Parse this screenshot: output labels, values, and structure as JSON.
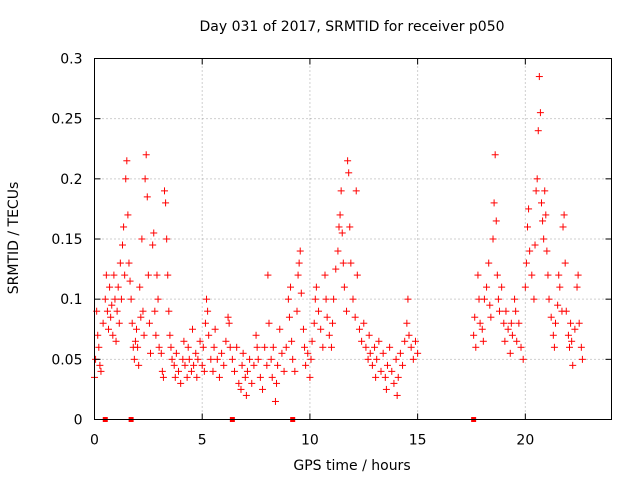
{
  "chart_data": {
    "type": "scatter",
    "title": "Day 031 of 2017, SRMTID for receiver p050",
    "xlabel": "GPS time / hours",
    "ylabel": "SRMTID / TECUs",
    "xlim": [
      0,
      24
    ],
    "ylim": [
      0,
      0.3
    ],
    "xticks": [
      0,
      5,
      10,
      15,
      20
    ],
    "xtick_labels": [
      "0",
      "5",
      "10",
      "15",
      "20"
    ],
    "yticks": [
      0,
      0.05,
      0.1,
      0.15,
      0.2,
      0.25,
      0.3
    ],
    "ytick_labels": [
      "0",
      "0.05",
      "0.1",
      "0.15",
      "0.2",
      "0.25",
      "0.3"
    ],
    "grid": true,
    "marker": "+",
    "color": "#ff0000",
    "series": [
      {
        "name": "SRMTID",
        "points": [
          [
            0.0,
            0.035
          ],
          [
            0.05,
            0.05
          ],
          [
            0.1,
            0.09
          ],
          [
            0.15,
            0.07
          ],
          [
            0.2,
            0.06
          ],
          [
            0.25,
            0.045
          ],
          [
            0.3,
            0.04
          ],
          [
            0.4,
            0.08
          ],
          [
            0.5,
            0.1
          ],
          [
            0.55,
            0.12
          ],
          [
            0.6,
            0.09
          ],
          [
            0.65,
            0.075
          ],
          [
            0.7,
            0.11
          ],
          [
            0.75,
            0.085
          ],
          [
            0.8,
            0.095
          ],
          [
            0.85,
            0.07
          ],
          [
            0.9,
            0.12
          ],
          [
            0.95,
            0.1
          ],
          [
            1.0,
            0.065
          ],
          [
            1.05,
            0.09
          ],
          [
            1.1,
            0.11
          ],
          [
            1.15,
            0.08
          ],
          [
            1.2,
            0.13
          ],
          [
            1.25,
            0.1
          ],
          [
            1.3,
            0.145
          ],
          [
            1.35,
            0.16
          ],
          [
            1.4,
            0.12
          ],
          [
            1.45,
            0.2
          ],
          [
            1.5,
            0.215
          ],
          [
            1.55,
            0.17
          ],
          [
            1.6,
            0.13
          ],
          [
            1.65,
            0.115
          ],
          [
            1.7,
            0.1
          ],
          [
            1.75,
            0.08
          ],
          [
            1.8,
            0.06
          ],
          [
            1.85,
            0.05
          ],
          [
            1.9,
            0.065
          ],
          [
            1.95,
            0.075
          ],
          [
            2.0,
            0.06
          ],
          [
            2.05,
            0.045
          ],
          [
            2.1,
            0.11
          ],
          [
            2.15,
            0.085
          ],
          [
            2.2,
            0.15
          ],
          [
            2.25,
            0.09
          ],
          [
            2.3,
            0.07
          ],
          [
            2.35,
            0.2
          ],
          [
            2.4,
            0.22
          ],
          [
            2.45,
            0.185
          ],
          [
            2.5,
            0.12
          ],
          [
            2.55,
            0.08
          ],
          [
            2.6,
            0.055
          ],
          [
            2.7,
            0.145
          ],
          [
            2.75,
            0.155
          ],
          [
            2.8,
            0.09
          ],
          [
            2.85,
            0.07
          ],
          [
            2.9,
            0.12
          ],
          [
            2.95,
            0.1
          ],
          [
            3.0,
            0.06
          ],
          [
            3.1,
            0.055
          ],
          [
            3.15,
            0.04
          ],
          [
            3.2,
            0.035
          ],
          [
            3.25,
            0.19
          ],
          [
            3.3,
            0.18
          ],
          [
            3.35,
            0.15
          ],
          [
            3.4,
            0.12
          ],
          [
            3.45,
            0.09
          ],
          [
            3.5,
            0.07
          ],
          [
            3.55,
            0.06
          ],
          [
            3.6,
            0.05
          ],
          [
            3.7,
            0.045
          ],
          [
            3.75,
            0.035
          ],
          [
            3.8,
            0.055
          ],
          [
            3.9,
            0.04
          ],
          [
            4.0,
            0.03
          ],
          [
            4.1,
            0.05
          ],
          [
            4.15,
            0.065
          ],
          [
            4.2,
            0.045
          ],
          [
            4.3,
            0.035
          ],
          [
            4.35,
            0.06
          ],
          [
            4.4,
            0.05
          ],
          [
            4.5,
            0.04
          ],
          [
            4.55,
            0.075
          ],
          [
            4.6,
            0.045
          ],
          [
            4.7,
            0.055
          ],
          [
            4.75,
            0.035
          ],
          [
            4.8,
            0.05
          ],
          [
            4.9,
            0.065
          ],
          [
            5.0,
            0.045
          ],
          [
            5.05,
            0.06
          ],
          [
            5.1,
            0.04
          ],
          [
            5.15,
            0.08
          ],
          [
            5.2,
            0.1
          ],
          [
            5.25,
            0.09
          ],
          [
            5.3,
            0.07
          ],
          [
            5.4,
            0.05
          ],
          [
            5.5,
            0.04
          ],
          [
            5.55,
            0.06
          ],
          [
            5.6,
            0.075
          ],
          [
            5.7,
            0.05
          ],
          [
            5.8,
            0.035
          ],
          [
            5.9,
            0.055
          ],
          [
            6.0,
            0.045
          ],
          [
            6.1,
            0.065
          ],
          [
            6.2,
            0.085
          ],
          [
            6.25,
            0.08
          ],
          [
            6.3,
            0.06
          ],
          [
            6.4,
            0.05
          ],
          [
            6.5,
            0.04
          ],
          [
            6.6,
            0.06
          ],
          [
            6.7,
            0.03
          ],
          [
            6.8,
            0.025
          ],
          [
            6.85,
            0.045
          ],
          [
            6.9,
            0.055
          ],
          [
            7.0,
            0.035
          ],
          [
            7.05,
            0.02
          ],
          [
            7.1,
            0.04
          ],
          [
            7.2,
            0.05
          ],
          [
            7.3,
            0.03
          ],
          [
            7.4,
            0.045
          ],
          [
            7.5,
            0.07
          ],
          [
            7.55,
            0.06
          ],
          [
            7.6,
            0.05
          ],
          [
            7.7,
            0.035
          ],
          [
            7.8,
            0.025
          ],
          [
            7.9,
            0.06
          ],
          [
            8.0,
            0.045
          ],
          [
            8.05,
            0.12
          ],
          [
            8.1,
            0.08
          ],
          [
            8.2,
            0.05
          ],
          [
            8.25,
            0.035
          ],
          [
            8.3,
            0.06
          ],
          [
            8.4,
            0.015
          ],
          [
            8.45,
            0.03
          ],
          [
            8.5,
            0.045
          ],
          [
            8.6,
            0.075
          ],
          [
            8.7,
            0.055
          ],
          [
            8.8,
            0.04
          ],
          [
            8.9,
            0.06
          ],
          [
            9.0,
            0.1
          ],
          [
            9.05,
            0.085
          ],
          [
            9.1,
            0.11
          ],
          [
            9.15,
            0.065
          ],
          [
            9.2,
            0.05
          ],
          [
            9.3,
            0.04
          ],
          [
            9.4,
            0.09
          ],
          [
            9.45,
            0.12
          ],
          [
            9.5,
            0.13
          ],
          [
            9.55,
            0.14
          ],
          [
            9.6,
            0.105
          ],
          [
            9.7,
            0.075
          ],
          [
            9.75,
            0.06
          ],
          [
            9.8,
            0.045
          ],
          [
            9.9,
            0.055
          ],
          [
            10.0,
            0.035
          ],
          [
            10.05,
            0.05
          ],
          [
            10.1,
            0.065
          ],
          [
            10.2,
            0.08
          ],
          [
            10.25,
            0.1
          ],
          [
            10.3,
            0.11
          ],
          [
            10.4,
            0.09
          ],
          [
            10.5,
            0.075
          ],
          [
            10.6,
            0.06
          ],
          [
            10.7,
            0.12
          ],
          [
            10.75,
            0.1
          ],
          [
            10.8,
            0.085
          ],
          [
            10.9,
            0.07
          ],
          [
            11.0,
            0.06
          ],
          [
            11.05,
            0.08
          ],
          [
            11.1,
            0.1
          ],
          [
            11.2,
            0.125
          ],
          [
            11.3,
            0.14
          ],
          [
            11.35,
            0.16
          ],
          [
            11.4,
            0.17
          ],
          [
            11.45,
            0.19
          ],
          [
            11.5,
            0.155
          ],
          [
            11.55,
            0.13
          ],
          [
            11.6,
            0.11
          ],
          [
            11.7,
            0.09
          ],
          [
            11.75,
            0.215
          ],
          [
            11.8,
            0.205
          ],
          [
            11.85,
            0.16
          ],
          [
            11.9,
            0.13
          ],
          [
            12.0,
            0.1
          ],
          [
            12.1,
            0.085
          ],
          [
            12.15,
            0.19
          ],
          [
            12.2,
            0.12
          ],
          [
            12.3,
            0.075
          ],
          [
            12.4,
            0.065
          ],
          [
            12.5,
            0.08
          ],
          [
            12.6,
            0.06
          ],
          [
            12.7,
            0.05
          ],
          [
            12.75,
            0.07
          ],
          [
            12.8,
            0.055
          ],
          [
            12.9,
            0.045
          ],
          [
            13.0,
            0.06
          ],
          [
            13.05,
            0.035
          ],
          [
            13.1,
            0.05
          ],
          [
            13.2,
            0.065
          ],
          [
            13.3,
            0.04
          ],
          [
            13.4,
            0.055
          ],
          [
            13.5,
            0.035
          ],
          [
            13.55,
            0.025
          ],
          [
            13.6,
            0.045
          ],
          [
            13.7,
            0.06
          ],
          [
            13.8,
            0.04
          ],
          [
            13.9,
            0.03
          ],
          [
            14.0,
            0.05
          ],
          [
            14.05,
            0.02
          ],
          [
            14.1,
            0.035
          ],
          [
            14.2,
            0.055
          ],
          [
            14.3,
            0.045
          ],
          [
            14.4,
            0.065
          ],
          [
            14.5,
            0.08
          ],
          [
            14.55,
            0.1
          ],
          [
            14.6,
            0.07
          ],
          [
            14.7,
            0.06
          ],
          [
            14.8,
            0.05
          ],
          [
            14.9,
            0.065
          ],
          [
            15.0,
            0.055
          ],
          [
            17.6,
            0.07
          ],
          [
            17.65,
            0.085
          ],
          [
            17.7,
            0.06
          ],
          [
            17.8,
            0.12
          ],
          [
            17.85,
            0.1
          ],
          [
            17.9,
            0.08
          ],
          [
            18.0,
            0.075
          ],
          [
            18.05,
            0.065
          ],
          [
            18.1,
            0.1
          ],
          [
            18.2,
            0.11
          ],
          [
            18.3,
            0.13
          ],
          [
            18.35,
            0.095
          ],
          [
            18.4,
            0.085
          ],
          [
            18.5,
            0.15
          ],
          [
            18.55,
            0.18
          ],
          [
            18.6,
            0.22
          ],
          [
            18.65,
            0.165
          ],
          [
            18.7,
            0.12
          ],
          [
            18.75,
            0.1
          ],
          [
            18.8,
            0.09
          ],
          [
            18.9,
            0.11
          ],
          [
            19.0,
            0.08
          ],
          [
            19.05,
            0.065
          ],
          [
            19.1,
            0.09
          ],
          [
            19.2,
            0.075
          ],
          [
            19.3,
            0.055
          ],
          [
            19.35,
            0.08
          ],
          [
            19.4,
            0.07
          ],
          [
            19.5,
            0.1
          ],
          [
            19.55,
            0.09
          ],
          [
            19.6,
            0.065
          ],
          [
            19.7,
            0.08
          ],
          [
            19.8,
            0.06
          ],
          [
            19.9,
            0.05
          ],
          [
            20.0,
            0.11
          ],
          [
            20.05,
            0.13
          ],
          [
            20.1,
            0.16
          ],
          [
            20.15,
            0.175
          ],
          [
            20.2,
            0.14
          ],
          [
            20.3,
            0.12
          ],
          [
            20.4,
            0.1
          ],
          [
            20.45,
            0.145
          ],
          [
            20.5,
            0.19
          ],
          [
            20.55,
            0.2
          ],
          [
            20.6,
            0.24
          ],
          [
            20.65,
            0.285
          ],
          [
            20.7,
            0.255
          ],
          [
            20.75,
            0.18
          ],
          [
            20.8,
            0.165
          ],
          [
            20.85,
            0.15
          ],
          [
            20.9,
            0.19
          ],
          [
            20.95,
            0.17
          ],
          [
            21.0,
            0.14
          ],
          [
            21.05,
            0.12
          ],
          [
            21.1,
            0.1
          ],
          [
            21.2,
            0.085
          ],
          [
            21.3,
            0.07
          ],
          [
            21.35,
            0.06
          ],
          [
            21.4,
            0.08
          ],
          [
            21.5,
            0.095
          ],
          [
            21.55,
            0.12
          ],
          [
            21.6,
            0.11
          ],
          [
            21.7,
            0.09
          ],
          [
            21.75,
            0.16
          ],
          [
            21.8,
            0.17
          ],
          [
            21.85,
            0.13
          ],
          [
            21.9,
            0.09
          ],
          [
            22.0,
            0.07
          ],
          [
            22.05,
            0.06
          ],
          [
            22.1,
            0.08
          ],
          [
            22.15,
            0.065
          ],
          [
            22.2,
            0.045
          ],
          [
            22.3,
            0.075
          ],
          [
            22.4,
            0.11
          ],
          [
            22.45,
            0.12
          ],
          [
            22.5,
            0.08
          ],
          [
            22.6,
            0.06
          ],
          [
            22.65,
            0.05
          ]
        ]
      },
      {
        "name": "markers-at-zero",
        "marker": "square",
        "points": [
          [
            0.5,
            0
          ],
          [
            1.7,
            0
          ],
          [
            6.4,
            0
          ],
          [
            9.2,
            0
          ],
          [
            17.6,
            0
          ]
        ]
      }
    ]
  }
}
